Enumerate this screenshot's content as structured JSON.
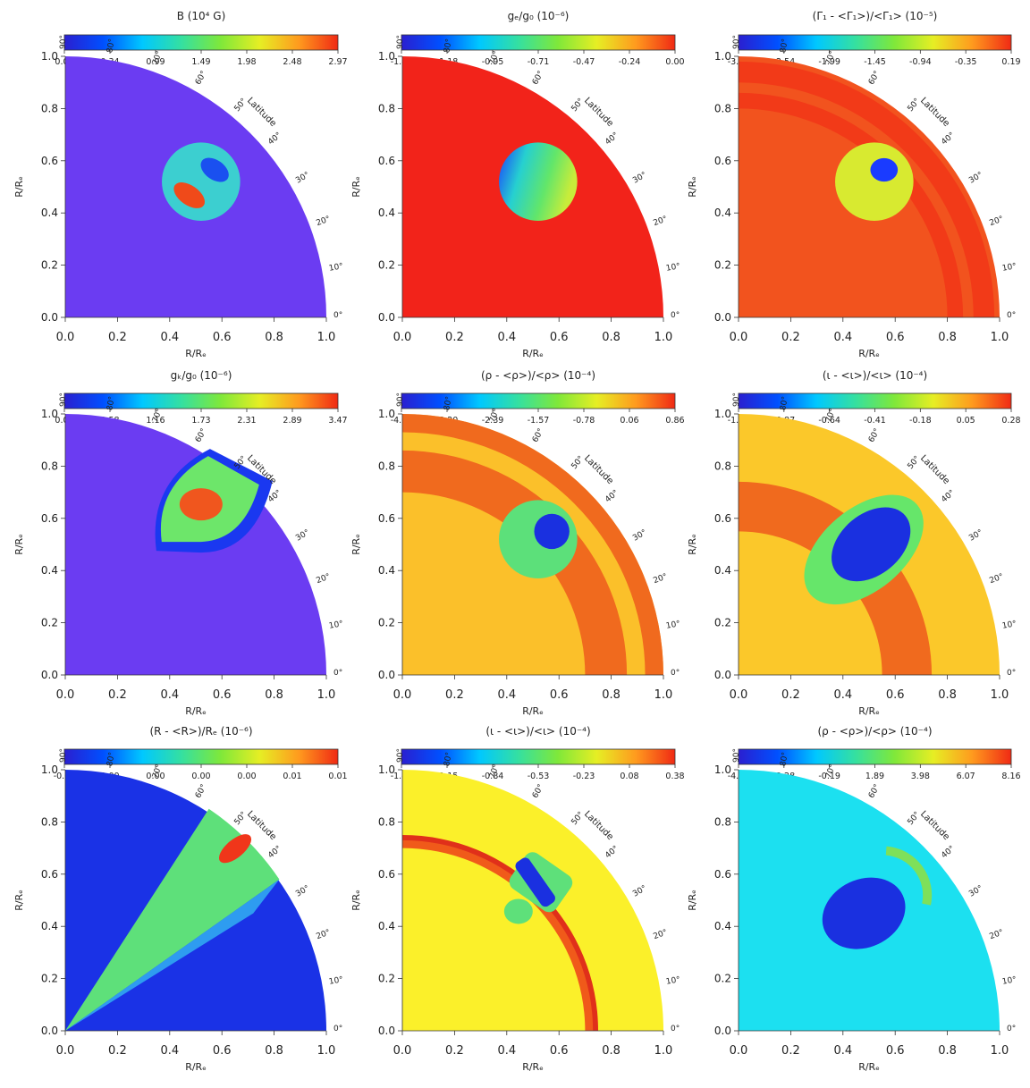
{
  "figure": {
    "axis_range": [
      0.0,
      1.0
    ],
    "axis_ticks": [
      "0.0",
      "0.2",
      "0.4",
      "0.6",
      "0.8",
      "1.0"
    ],
    "xlabel": "R/Rₑ",
    "ylabel": "R/Rₑ",
    "latitude_ticks": [
      "0°",
      "10°",
      "20°",
      "30°",
      "40°",
      "50°",
      "60°",
      "70°",
      "80°",
      "90°"
    ],
    "latitude_label": "Latitude",
    "colormap": [
      "#2a1fd0",
      "#0050ff",
      "#00c8ff",
      "#35e0a0",
      "#7fe83a",
      "#e6ee24",
      "#ff9a1e",
      "#f02a14"
    ]
  },
  "chart_data": [
    {
      "type": "heatmap",
      "title": "B (10⁴ G)",
      "colorbar_ticks": [
        "0.00",
        "0.34",
        "0.99",
        "1.49",
        "1.98",
        "2.48",
        "2.97"
      ],
      "background": "#6b3cf2",
      "spot": {
        "center": [
          0.52,
          0.52
        ],
        "radius": 0.12
      }
    },
    {
      "type": "heatmap",
      "title": "gₑ/g₀ (10⁻⁶)",
      "colorbar_ticks": [
        "-1.42",
        "-1.18",
        "-0.95",
        "-0.71",
        "-0.47",
        "-0.24",
        "0.00"
      ],
      "background": "#f2231a",
      "spot": {
        "center": [
          0.52,
          0.52
        ],
        "radius": 0.12
      }
    },
    {
      "type": "heatmap",
      "title": "(Γ₁ - <Γ₁>)/<Γ₁> (10⁻⁵)",
      "colorbar_ticks": [
        "-3.09",
        "-2.54",
        "-1.99",
        "-1.45",
        "-0.94",
        "-0.35",
        "0.19"
      ],
      "background": "#f2531e",
      "spot": {
        "center": [
          0.52,
          0.52
        ],
        "radius": 0.12
      }
    },
    {
      "type": "heatmap",
      "title": "gₖ/g₀ (10⁻⁶)",
      "colorbar_ticks": [
        "0.00",
        "0.58",
        "1.16",
        "1.73",
        "2.31",
        "2.89",
        "3.47"
      ],
      "background": "#6b3cf2"
    },
    {
      "type": "heatmap",
      "title": "(ρ - <ρ>)/<ρ> (10⁻⁴)",
      "colorbar_ticks": [
        "-4.00",
        "-3.20",
        "-2.39",
        "-1.57",
        "-0.78",
        "0.06",
        "0.86"
      ],
      "background": "#fbc02a",
      "spot": {
        "center": [
          0.52,
          0.52
        ],
        "radius": 0.12
      }
    },
    {
      "type": "heatmap",
      "title": "(ι - <ι>)/<ι> (10⁻⁴)",
      "colorbar_ticks": [
        "-1.10",
        "-0.87",
        "-0.64",
        "-0.41",
        "-0.18",
        "0.05",
        "0.28"
      ],
      "background": "#fbc82a"
    },
    {
      "type": "heatmap",
      "title": "(R - <R>)/Rₑ (10⁻⁶)",
      "colorbar_ticks": [
        "-0.00",
        "0.00",
        "0.00",
        "0.00",
        "0.00",
        "0.01",
        "0.01"
      ],
      "background": "#1a32e6"
    },
    {
      "type": "heatmap",
      "title": "(ι - <ι>)/<ι> (10⁻⁴)",
      "colorbar_ticks": [
        "-1.45",
        "-1.15",
        "-0.84",
        "-0.53",
        "-0.23",
        "0.08",
        "0.38"
      ],
      "background": "#fbf02a"
    },
    {
      "type": "heatmap",
      "title": "(ρ - <ρ>)/<ρ> (10⁻⁴)",
      "colorbar_ticks": [
        "-4.37",
        "-2.28",
        "-0.19",
        "1.89",
        "3.98",
        "6.07",
        "8.16"
      ],
      "background": "#1ce0f0"
    }
  ]
}
